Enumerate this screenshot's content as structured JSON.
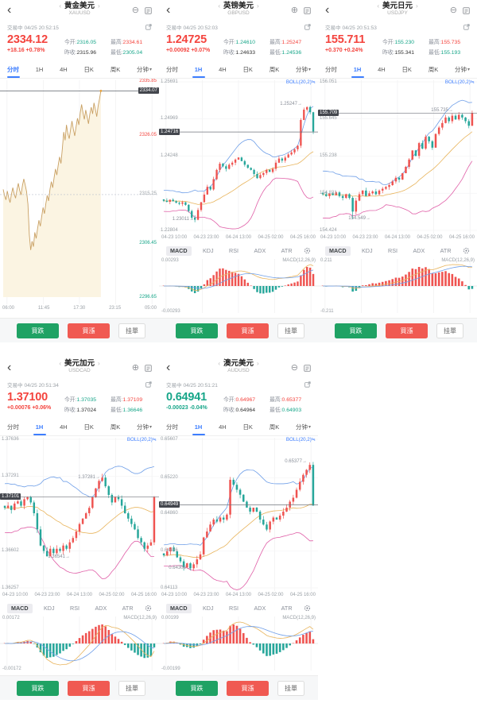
{
  "colors": {
    "up_red": "#f4443e",
    "down_teal": "#17a689",
    "accent_blue": "#3d7eff",
    "candle_up": "#ef5350",
    "candle_down": "#26a69a",
    "boll_upper": "#6f9fe8",
    "boll_mid": "#e8b45c",
    "boll_lower": "#e060a8",
    "timeshare_line": "#c9a063",
    "timeshare_fill": "#fbf4e2",
    "tag_bg": "#43464d",
    "button_green": "#1fa264",
    "button_red": "#f05a52"
  },
  "shared": {
    "status_label": "交易中",
    "tabs": [
      "分时",
      "1H",
      "4H",
      "日K",
      "周K",
      "分钟"
    ],
    "indicators": [
      "MACD",
      "KDJ",
      "RSI",
      "ADX",
      "ATR"
    ],
    "quote_labels": {
      "open": "今开:",
      "high": "最高:",
      "prev": "昨收:",
      "low": "最低:"
    },
    "buttons": {
      "sell": "買跌",
      "buy": "買漲",
      "pending": "挂單"
    },
    "boll_label": "BOLL(20,2)≒",
    "glyphs": {
      "back": "‹",
      "prev": "‹",
      "next": "›",
      "dropdown": "▾",
      "fav_minus": "⊖",
      "fav_plus": "⊕"
    }
  },
  "panels": [
    {
      "title": "黄金美元",
      "symbol": "XAUUSD",
      "fav_icon": "minus",
      "time": "04/25 20:52:15",
      "price": "2334.12",
      "change": "+18.16 +0.78%",
      "trend": "up",
      "open": "2316.05",
      "open_cls": "down",
      "high": "2334.61",
      "prev": "2315.96",
      "low": "2305.04",
      "active_tab": 0,
      "chart": {
        "type": "line",
        "axis_min": 2296.65,
        "axis_max": 2335.85,
        "baseline": 2315.25,
        "extent": 0.64,
        "tag": "2334.07",
        "tag_value": 2334.07,
        "ylabels": [
          {
            "v": 2335.85,
            "t": "2335.85",
            "cls": "red"
          },
          {
            "v": 2326.05,
            "t": "2326.05",
            "cls": "red"
          },
          {
            "v": 2315.25,
            "t": "2315.25",
            "cls": "gray"
          },
          {
            "v": 2306.45,
            "t": "2306.45",
            "cls": "green"
          },
          {
            "v": 2296.65,
            "t": "2296.65",
            "cls": "green"
          }
        ],
        "xlabels": [
          "06:00",
          "11:45",
          "17:30",
          "23:15",
          "05:00"
        ],
        "points": [
          2316.2,
          2315.1,
          2314.3,
          2315.9,
          2314.7,
          2313.8,
          2315.3,
          2316.5,
          2315.4,
          2314.6,
          2316.1,
          2317.3,
          2316.0,
          2315.2,
          2316.9,
          2318.1,
          2317.0,
          2315.8,
          2313.5,
          2308.0,
          2305.2,
          2306.8,
          2305.8,
          2308.4,
          2307.3,
          2309.1,
          2310.6,
          2309.5,
          2311.3,
          2312.9,
          2311.8,
          2313.6,
          2315.1,
          2314.1,
          2316.2,
          2317.6,
          2316.5,
          2318.3,
          2319.9,
          2318.8,
          2320.6,
          2322.1,
          2320.9,
          2323.6,
          2326.6,
          2325.1,
          2327.9,
          2326.3,
          2325.4,
          2327.1,
          2328.6,
          2327.1,
          2325.9,
          2327.6,
          2329.1,
          2327.9,
          2330.1,
          2331.6,
          2330.1,
          2328.9,
          2330.6,
          2329.4,
          2328.1,
          2329.9,
          2331.1,
          2329.9,
          2331.9,
          2330.7,
          2329.4,
          2331.3,
          2332.6,
          2334.07
        ]
      }
    },
    {
      "title": "英镑美元",
      "symbol": "GBPUSD",
      "fav_icon": "plus",
      "time": "04/25 20:52:03",
      "price": "1.24725",
      "change": "+0.00092 +0.07%",
      "trend": "up",
      "open": "1.24610",
      "open_cls": "down",
      "high": "1.25247",
      "prev": "1.24633",
      "low": "1.24536",
      "active_tab": 1,
      "chart": {
        "type": "candle",
        "axis_min": 1.22804,
        "axis_max": 1.25691,
        "tag": "1.24716",
        "tag_value": 1.24716,
        "ylabels": [
          {
            "v": 1.25691,
            "t": "1.25691",
            "cls": "gray"
          },
          {
            "v": 1.24969,
            "t": "1.24969",
            "cls": "gray"
          },
          {
            "v": 1.24248,
            "t": "1.24248",
            "cls": "gray"
          },
          {
            "v": 1.22804,
            "t": "1.22804",
            "cls": "gray"
          }
        ],
        "annotations": [
          {
            "t": "1.25247→",
            "v": 1.25247,
            "xf": 0.9
          },
          {
            "t": "1.23011→",
            "v": 1.23011,
            "xf": 0.22
          }
        ],
        "xlabels": [
          "04-23 10:00",
          "04-23 23:00",
          "04-24 13:00",
          "04-25 02:00",
          "04-25 16:00"
        ],
        "closes": [
          1.2338,
          1.2336,
          1.234,
          1.2337,
          1.2334,
          1.2332,
          1.2335,
          1.233,
          1.2318,
          1.2305,
          1.23011,
          1.232,
          1.2335,
          1.235,
          1.2365,
          1.236,
          1.238,
          1.2398,
          1.241,
          1.2405,
          1.24,
          1.2408,
          1.2412,
          1.2418,
          1.2422,
          1.2415,
          1.2408,
          1.2402,
          1.2398,
          1.239,
          1.2382,
          1.2388,
          1.2392,
          1.2398,
          1.2394,
          1.24,
          1.2412,
          1.242,
          1.2416,
          1.2422,
          1.2428,
          1.2432,
          1.2438,
          1.2445,
          1.2495,
          1.2515,
          1.252,
          1.251,
          1.24725
        ]
      },
      "macd": {
        "max": "0.00293",
        "min": "-0.00293",
        "param": "MACD(12,26,9)"
      }
    },
    {
      "title": "美元日元",
      "symbol": "USDJPY",
      "fav_icon": "minus",
      "time": "04/25 20:51:53",
      "price": "155.711",
      "change": "+0.370 +0.24%",
      "trend": "up",
      "open": "155.230",
      "open_cls": "down",
      "high": "155.735",
      "prev": "155.341",
      "low": "155.193",
      "active_tab": 1,
      "chart": {
        "type": "candle",
        "axis_min": 154.424,
        "axis_max": 156.051,
        "tag": "155.709",
        "tag_value": 155.709,
        "spike": {
          "i": 9,
          "low": 154.549
        },
        "ylabels": [
          {
            "v": 156.051,
            "t": "156.051",
            "cls": "gray"
          },
          {
            "v": 155.645,
            "t": "155.645",
            "cls": "gray"
          },
          {
            "v": 155.238,
            "t": "155.238",
            "cls": "gray"
          },
          {
            "v": 154.831,
            "t": "154.831",
            "cls": "gray"
          },
          {
            "v": 154.424,
            "t": "154.424",
            "cls": "gray"
          }
        ],
        "annotations": [
          {
            "t": "155.735→",
            "v": 155.735,
            "xf": 0.85
          },
          {
            "t": "154.549→",
            "v": 154.549,
            "xf": 0.33
          }
        ],
        "xlabels": [
          "04-23 10:00",
          "04-23 23:00",
          "04-24 13:00",
          "04-25 02:00",
          "04-25 16:00"
        ],
        "closes": [
          154.82,
          154.8,
          154.83,
          154.81,
          154.84,
          154.8,
          154.78,
          154.82,
          154.78,
          154.63,
          154.75,
          154.82,
          154.86,
          154.8,
          154.83,
          154.85,
          154.82,
          154.86,
          154.88,
          154.9,
          154.92,
          154.96,
          155.0,
          154.98,
          155.05,
          155.12,
          155.2,
          155.3,
          155.24,
          155.38,
          155.32,
          155.45,
          155.4,
          155.33,
          155.48,
          155.55,
          155.6,
          155.66,
          155.62,
          155.68,
          155.64,
          155.69,
          155.66,
          155.62,
          155.57,
          155.711
        ]
      },
      "macd": {
        "max": "0.211",
        "min": "-0.211",
        "param": "MACD(12,26,9)"
      }
    },
    {
      "title": "美元加元",
      "symbol": "USDCAD",
      "fav_icon": "plus",
      "time": "04/25 20:51:34",
      "price": "1.37100",
      "change": "+0.00076 +0.06%",
      "trend": "up",
      "open": "1.37035",
      "open_cls": "down",
      "high": "1.37109",
      "prev": "1.37024",
      "low": "1.36646",
      "active_tab": 1,
      "chart": {
        "type": "candle",
        "axis_min": 1.36257,
        "axis_max": 1.37636,
        "tag": "1.37101",
        "tag_value": 1.37101,
        "ylabels": [
          {
            "v": 1.37636,
            "t": "1.37636",
            "cls": "gray"
          },
          {
            "v": 1.37291,
            "t": "1.37291",
            "cls": "gray"
          },
          {
            "v": 1.36602,
            "t": "1.36602",
            "cls": "gray"
          },
          {
            "v": 1.36257,
            "t": "1.36257",
            "cls": "gray"
          }
        ],
        "annotations": [
          {
            "t": "1.37281→",
            "v": 1.37281,
            "xf": 0.63
          },
          {
            "t": "1.36541→",
            "v": 1.36541,
            "xf": 0.44
          }
        ],
        "xlabels": [
          "04-23 10:00",
          "04-23 23:00",
          "04-24 13:00",
          "04-25 02:00",
          "04-25 16:00"
        ],
        "closes": [
          1.37,
          1.3702,
          1.3698,
          1.3704,
          1.3706,
          1.3702,
          1.3708,
          1.371,
          1.3705,
          1.3695,
          1.368,
          1.3665,
          1.366,
          1.3655,
          1.3662,
          1.3658,
          1.3662,
          1.366,
          1.3665,
          1.3662,
          1.3668,
          1.3672,
          1.3678,
          1.3685,
          1.369,
          1.3695,
          1.37,
          1.371,
          1.3718,
          1.3725,
          1.37281,
          1.372,
          1.3712,
          1.3705,
          1.371,
          1.3708,
          1.3702,
          1.3695,
          1.369,
          1.3685,
          1.368,
          1.3672,
          1.3668,
          1.3662,
          1.3665,
          1.3668,
          1.371
        ]
      },
      "macd": {
        "max": "0.00172",
        "min": "-0.00172",
        "param": "MACD(12,26,9)"
      }
    },
    {
      "title": "澳元美元",
      "symbol": "AUDUSD",
      "fav_icon": "minus",
      "time": "04/25 20:51:21",
      "price": "0.64941",
      "change": "-0.00023 -0.04%",
      "trend": "down",
      "open": "0.64967",
      "open_cls": "up",
      "high": "0.65377",
      "prev": "0.64964",
      "low": "0.64903",
      "active_tab": 1,
      "chart": {
        "type": "candle",
        "axis_min": 0.64113,
        "axis_max": 0.65607,
        "tag": "0.64949",
        "tag_value": 0.64949,
        "ylabels": [
          {
            "v": 0.65607,
            "t": "0.65607",
            "cls": "gray"
          },
          {
            "v": 0.6522,
            "t": "0.65220",
            "cls": "gray"
          },
          {
            "v": 0.6486,
            "t": "0.64860",
            "cls": "gray"
          },
          {
            "v": 0.64486,
            "t": "0.64486",
            "cls": "gray"
          },
          {
            "v": 0.64113,
            "t": "0.64113",
            "cls": "gray"
          }
        ],
        "annotations": [
          {
            "t": "0.65377→",
            "v": 0.65377,
            "xf": 0.93
          },
          {
            "t": "0.64308→",
            "v": 0.64308,
            "xf": 0.2
          }
        ],
        "xlabels": [
          "04-23 10:00",
          "04-23 23:00",
          "04-24 13:00",
          "04-25 02:00",
          "04-25 16:00"
        ],
        "closes": [
          0.6444,
          0.6448,
          0.6452,
          0.6448,
          0.6442,
          0.6438,
          0.6432,
          0.6436,
          0.6431,
          0.6435,
          0.644,
          0.6445,
          0.6462,
          0.6468,
          0.6475,
          0.648,
          0.6478,
          0.6482,
          0.648,
          0.6485,
          0.652,
          0.6515,
          0.651,
          0.6505,
          0.6498,
          0.6492,
          0.6488,
          0.6492,
          0.6488,
          0.648,
          0.6475,
          0.647,
          0.6478,
          0.6482,
          0.648,
          0.6484,
          0.6488,
          0.6492,
          0.6498,
          0.6502,
          0.651,
          0.6518,
          0.6525,
          0.653,
          0.6535,
          0.64941
        ]
      },
      "macd": {
        "max": "0.00199",
        "min": "-0.00199",
        "param": "MACD(12,26,9)"
      }
    }
  ]
}
